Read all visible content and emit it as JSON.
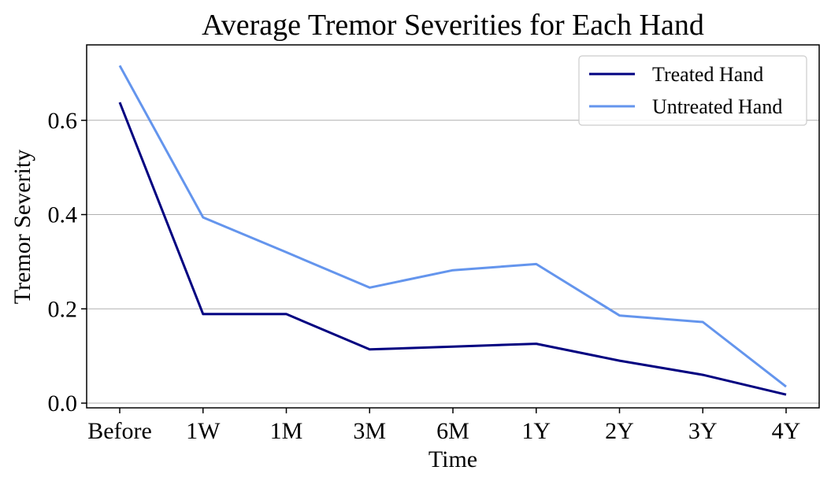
{
  "chart_data": {
    "type": "line",
    "title": "Average Tremor Severities for Each Hand",
    "xlabel": "Time",
    "ylabel": "Tremor Severity",
    "categories": [
      "Before",
      "1W",
      "1M",
      "3M",
      "6M",
      "1Y",
      "2Y",
      "3Y",
      "4Y"
    ],
    "series": [
      {
        "name": "Treated Hand",
        "color": "#000080",
        "values": [
          0.638,
          0.189,
          0.189,
          0.114,
          0.12,
          0.126,
          0.09,
          0.06,
          0.018
        ]
      },
      {
        "name": "Untreated Hand",
        "color": "#6495ED",
        "values": [
          0.716,
          0.394,
          0.32,
          0.245,
          0.282,
          0.295,
          0.186,
          0.172,
          0.035
        ]
      }
    ],
    "ylim": [
      -0.01,
      0.76
    ],
    "yticks": [
      0.0,
      0.2,
      0.4,
      0.6
    ],
    "ytick_labels": [
      "0.0",
      "0.2",
      "0.4",
      "0.6"
    ],
    "grid": "horizontal",
    "legend_position": "top-right"
  }
}
